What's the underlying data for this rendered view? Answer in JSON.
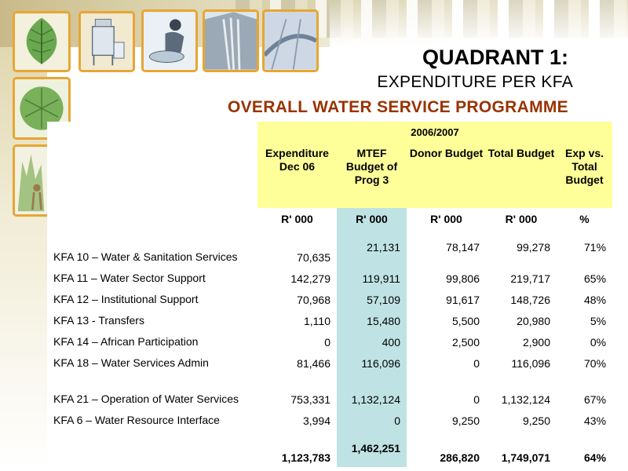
{
  "slide": {
    "title_line1": "QUADRANT 1:",
    "title_line2": "EXPENDITURE PER KFA",
    "title_line3": "OVERALL WATER SERVICE PROGRAMME"
  },
  "decor": {
    "tiles": [
      "leaf-icon",
      "water-tank-icon",
      "washing-person-icon",
      "waterfall-icon",
      "pipeline-icon",
      "round-leaf-icon",
      "plant-figure-icon"
    ],
    "tile_border_color": "#e7a634"
  },
  "colors": {
    "header_fill": "#ffff99",
    "mtef_column_fill": "#bfe3e4",
    "subtitle_color": "#993300"
  },
  "table": {
    "period": "2006/2007",
    "columns": {
      "expenditure": "Expenditure Dec 06",
      "mtef": "MTEF Budget of Prog 3",
      "donor": "Donor Budget",
      "total": "Total Budget",
      "exp_vs_total": "Exp vs. Total Budget"
    },
    "units": {
      "expenditure": "R' 000",
      "mtef": "R' 000",
      "donor": "R' 000",
      "total": "R' 000",
      "exp_vs_total": "%"
    },
    "rows": [
      {
        "kfa": "KFA 10 – Water & Sanitation Services",
        "expenditure": "70,635",
        "mtef": "21,131",
        "donor": "78,147",
        "total": "99,278",
        "pct": "71%"
      },
      {
        "kfa": "KFA 11 – Water Sector Support",
        "expenditure": "142,279",
        "mtef": "119,911",
        "donor": "99,806",
        "total": "219,717",
        "pct": "65%"
      },
      {
        "kfa": "KFA 12 – Institutional Support",
        "expenditure": "70,968",
        "mtef": "57,109",
        "donor": "91,617",
        "total": "148,726",
        "pct": "48%"
      },
      {
        "kfa": "KFA 13 - Transfers",
        "expenditure": "1,110",
        "mtef": "15,480",
        "donor": "5,500",
        "total": "20,980",
        "pct": "5%"
      },
      {
        "kfa": "KFA 14 – African Participation",
        "expenditure": "0",
        "mtef": "400",
        "donor": "2,500",
        "total": "2,900",
        "pct": "0%"
      },
      {
        "kfa": "KFA 18 – Water Services Admin",
        "expenditure": "81,466",
        "mtef": "116,096",
        "donor": "0",
        "total": "116,096",
        "pct": "70%"
      },
      {
        "kfa": "KFA 21 – Operation of Water Services",
        "expenditure": "753,331",
        "mtef": "1,132,124",
        "donor": "0",
        "total": "1,132,124",
        "pct": "67%"
      },
      {
        "kfa": "KFA 6 – Water Resource Interface",
        "expenditure": "3,994",
        "mtef": "0",
        "donor": "9,250",
        "total": "9,250",
        "pct": "43%"
      }
    ],
    "totals": {
      "expenditure": "1,123,783",
      "mtef": "1,462,251",
      "donor": "286,820",
      "total": "1,749,071",
      "pct": "64%"
    }
  }
}
